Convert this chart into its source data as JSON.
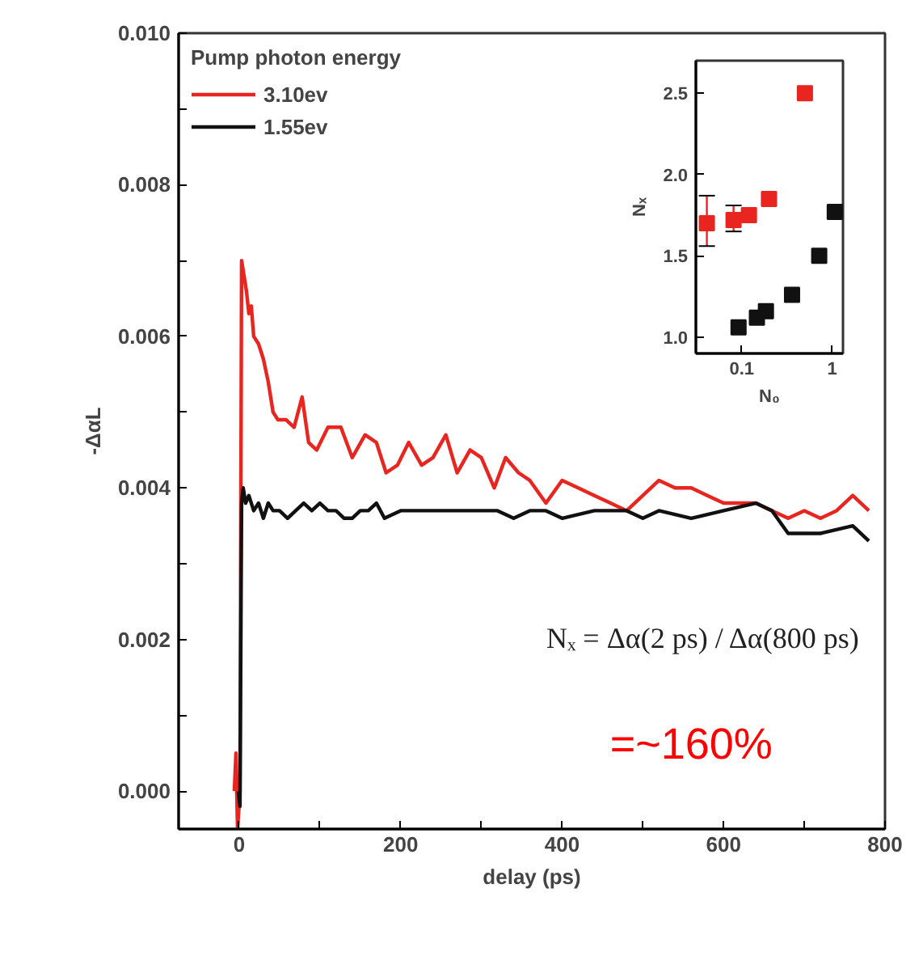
{
  "chart_data": [
    {
      "type": "line",
      "xlabel": "delay (ps)",
      "ylabel": "-ΔαL",
      "legend_title": "Pump photon energy",
      "legend": "top left",
      "grid": false,
      "line_style": "solid",
      "xlim": [
        -75,
        800
      ],
      "ylim": [
        -0.0005,
        0.01
      ],
      "xticks": [
        0,
        {
          "value": 100,
          "label": null
        },
        200,
        {
          "value": 300,
          "label": null
        },
        400,
        {
          "value": 500,
          "label": null
        },
        600,
        {
          "value": 700,
          "label": null
        },
        800
      ],
      "yticks": [
        {
          "value": 0,
          "label": "0.000"
        },
        {
          "value": 0.001,
          "label": null
        },
        {
          "value": 0.002,
          "label": "0.002"
        },
        {
          "value": 0.003,
          "label": null
        },
        {
          "value": 0.004,
          "label": "0.004"
        },
        {
          "value": 0.005,
          "label": null
        },
        {
          "value": 0.006,
          "label": "0.006"
        },
        {
          "value": 0.007,
          "label": null
        },
        {
          "value": 0.008,
          "label": "0.008"
        },
        {
          "value": 0.009,
          "label": null
        },
        {
          "value": 0.01,
          "label": "0.010"
        }
      ],
      "annotations": [
        "Nₓ = Δα(2 ps) / Δα(800 ps)",
        "=~160%"
      ],
      "series": [
        {
          "name": "3.10ev",
          "color": "#e8251f",
          "x": [
            -6,
            -4,
            -2,
            1,
            3,
            6,
            9,
            12,
            15,
            18,
            24,
            30,
            36,
            42,
            48,
            58,
            68,
            78,
            86,
            96,
            110,
            126,
            140,
            156,
            170,
            182,
            196,
            210,
            226,
            240,
            256,
            270,
            286,
            300,
            316,
            330,
            346,
            360,
            380,
            400,
            420,
            440,
            460,
            480,
            500,
            520,
            540,
            560,
            580,
            600,
            620,
            640,
            660,
            680,
            700,
            720,
            740,
            760,
            780
          ],
          "values": [
            0,
            0.0005,
            -0.0005,
            0,
            0.007,
            0.0068,
            0.0066,
            0.0063,
            0.0064,
            0.006,
            0.0059,
            0.0057,
            0.0054,
            0.005,
            0.0049,
            0.0049,
            0.0048,
            0.0052,
            0.0046,
            0.0045,
            0.0048,
            0.0048,
            0.0044,
            0.0047,
            0.0046,
            0.0042,
            0.0043,
            0.0046,
            0.0043,
            0.0044,
            0.0047,
            0.0042,
            0.0045,
            0.0044,
            0.004,
            0.0044,
            0.0042,
            0.0041,
            0.0038,
            0.0041,
            0.004,
            0.0039,
            0.0038,
            0.0037,
            0.0039,
            0.0041,
            0.004,
            0.004,
            0.0039,
            0.0038,
            0.0038,
            0.0038,
            0.0037,
            0.0036,
            0.0037,
            0.0036,
            0.0037,
            0.0039,
            0.0037
          ]
        },
        {
          "name": "1.55ev",
          "color": "#111111",
          "x": [
            -1,
            1,
            3,
            5,
            8,
            12,
            18,
            24,
            30,
            36,
            42,
            50,
            60,
            70,
            80,
            90,
            100,
            110,
            120,
            130,
            140,
            150,
            160,
            170,
            180,
            200,
            240,
            280,
            320,
            340,
            360,
            380,
            400,
            440,
            480,
            500,
            520,
            560,
            600,
            640,
            660,
            680,
            720,
            760,
            780
          ],
          "values": [
            0,
            -0.0002,
            0.0038,
            0.004,
            0.0038,
            0.0039,
            0.0037,
            0.0038,
            0.0036,
            0.0038,
            0.0037,
            0.0037,
            0.0036,
            0.0037,
            0.0038,
            0.0037,
            0.0038,
            0.0037,
            0.0037,
            0.0036,
            0.0036,
            0.0037,
            0.0037,
            0.0038,
            0.0036,
            0.0037,
            0.0037,
            0.0037,
            0.0037,
            0.0036,
            0.0037,
            0.0037,
            0.0036,
            0.0037,
            0.0037,
            0.0036,
            0.0037,
            0.0036,
            0.0037,
            0.0038,
            0.0037,
            0.0034,
            0.0034,
            0.0035,
            0.0033
          ]
        }
      ]
    },
    {
      "type": "scatter",
      "xlabel": "N₀",
      "ylabel": "Nₓ",
      "log": "x",
      "marker": "square",
      "grid": false,
      "xlim": [
        0.031,
        1.32
      ],
      "ylim": [
        0.9,
        2.7
      ],
      "xticks": [
        0.1,
        1
      ],
      "yticks": [
        {
          "value": 1.0,
          "label": "1.0"
        },
        1.5,
        {
          "value": 2.0,
          "label": "2.0"
        },
        2.5
      ],
      "series": [
        {
          "color": "#e8251f",
          "x": [
            0.041,
            0.081,
            0.12,
            0.2,
            0.5
          ],
          "values": [
            1.7,
            1.72,
            1.75,
            1.85,
            2.5
          ],
          "errors": [
            [
              1.56,
              1.87
            ],
            [
              1.65,
              1.81
            ],
            null,
            null,
            null
          ]
        },
        {
          "color": "#111111",
          "x": [
            0.092,
            0.147,
            0.185,
            0.36,
            0.72,
            1.07
          ],
          "values": [
            1.06,
            1.12,
            1.16,
            1.26,
            1.5,
            1.77
          ]
        }
      ]
    }
  ]
}
